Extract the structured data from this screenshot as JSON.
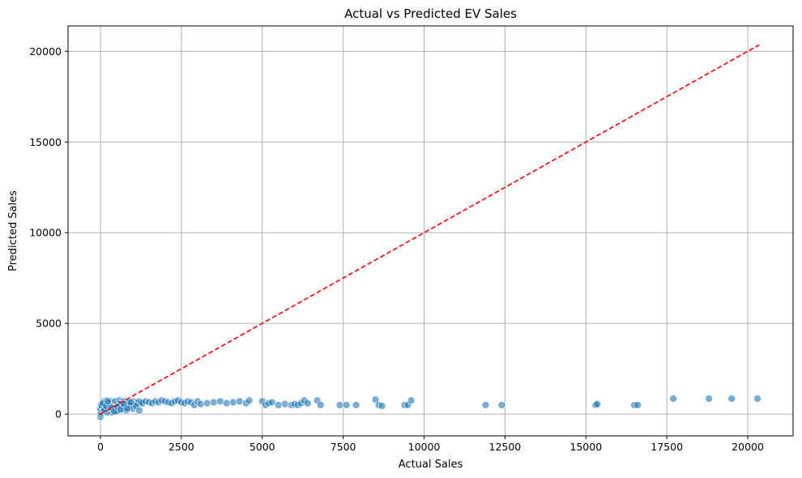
{
  "chart_data": {
    "type": "scatter",
    "title": "Actual vs Predicted EV Sales",
    "xlabel": "Actual Sales",
    "ylabel": "Predicted Sales",
    "xlim": [
      -1000,
      21400
    ],
    "ylim": [
      -1200,
      21400
    ],
    "xticks": [
      0,
      2500,
      5000,
      7500,
      10000,
      12500,
      15000,
      17500,
      20000
    ],
    "yticks": [
      0,
      5000,
      10000,
      15000,
      20000
    ],
    "grid": true,
    "colors": {
      "points": "#1f77b4",
      "reference_line": "#ff0000",
      "grid": "#b0b0b0"
    },
    "series": [
      {
        "x": [
          0,
          10,
          20,
          30,
          50,
          70,
          90,
          100,
          120,
          150,
          170,
          200,
          230,
          260,
          290,
          320,
          350,
          380,
          410,
          440,
          470,
          500,
          530,
          560,
          590,
          620,
          650,
          680,
          710,
          740,
          770,
          800,
          850,
          900,
          950,
          1000,
          1050,
          1100,
          1150,
          1200,
          1250,
          1300,
          1400,
          1500,
          1600,
          1700,
          1800,
          1900,
          2000,
          2100,
          2200,
          2300,
          2400,
          2500,
          2600,
          2700,
          2800,
          2900,
          3000,
          3100,
          3300,
          3500,
          3700,
          3900,
          4100,
          4300,
          4500,
          4600,
          5000,
          5100,
          5200,
          5300,
          5500,
          5700,
          5900,
          6000,
          6100,
          6200,
          6300,
          6400,
          6700,
          6800,
          7400,
          7600,
          7900,
          8500,
          8600,
          8700,
          9400,
          9500,
          9600,
          11900,
          12400,
          15300,
          15350,
          16500,
          16600,
          17700,
          18800,
          19500,
          20300,
          0,
          50,
          100,
          150,
          200,
          250,
          300,
          350,
          400,
          500,
          600,
          700,
          800,
          900,
          1000,
          1100,
          1200,
          30,
          80,
          130,
          180,
          230,
          330,
          430,
          530,
          630,
          730,
          830,
          930
        ],
        "y": [
          -150,
          0,
          100,
          300,
          500,
          600,
          200,
          700,
          400,
          650,
          300,
          750,
          200,
          600,
          400,
          700,
          100,
          500,
          650,
          300,
          700,
          400,
          600,
          200,
          750,
          450,
          650,
          300,
          550,
          700,
          400,
          600,
          500,
          650,
          450,
          700,
          550,
          650,
          600,
          700,
          650,
          600,
          700,
          650,
          600,
          700,
          650,
          750,
          700,
          650,
          600,
          700,
          750,
          650,
          600,
          700,
          650,
          500,
          700,
          550,
          600,
          650,
          700,
          600,
          650,
          700,
          600,
          750,
          700,
          500,
          600,
          650,
          500,
          550,
          500,
          550,
          500,
          600,
          750,
          600,
          750,
          500,
          500,
          500,
          500,
          800,
          500,
          450,
          500,
          500,
          750,
          500,
          500,
          500,
          550,
          500,
          500,
          850,
          850,
          850,
          850,
          300,
          400,
          200,
          500,
          100,
          600,
          450,
          250,
          350,
          150,
          550,
          400,
          200,
          500,
          300,
          450,
          200,
          500,
          600,
          250,
          450,
          700,
          350,
          150,
          400,
          250,
          550,
          300,
          650
        ]
      }
    ],
    "reference_line": {
      "x": [
        0,
        20350
      ],
      "y": [
        0,
        20350
      ],
      "style": "dashed"
    }
  }
}
